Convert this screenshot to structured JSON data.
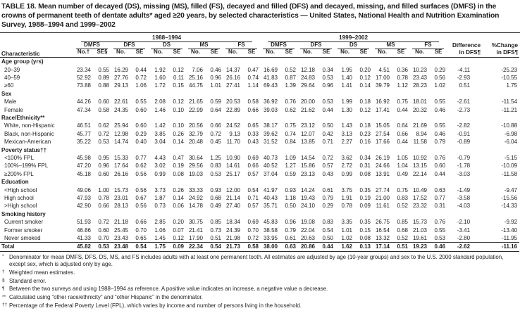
{
  "title": "TABLE 18. Mean number of decayed (DS), missing (MS), filled (FS), decayed and filled (DFS) and decayed, missing, and filled surfaces (DMFS) in the crowns of permanent teeth of dentate adults* aged ≥20 years, by selected characteristics — United States, National Health and Nutrition Examination Survey, 1988–1994 and 1999–2002",
  "header": {
    "characteristic": "Characteristic",
    "period1": "1988–1994",
    "period2": "1999–2002",
    "measures": [
      "DMFS",
      "DFS",
      "DS",
      "MS",
      "FS"
    ],
    "sub_first": [
      "No.†",
      "SE§"
    ],
    "sub": [
      "No.",
      "SE"
    ],
    "difference": "Difference\nin DFS¶",
    "pct_change": "%Change\nin DFS¶"
  },
  "rows": [
    {
      "type": "section",
      "label": "Age group (yrs)"
    },
    {
      "type": "data",
      "label": "20–39",
      "values": [
        "23.34",
        "0.55",
        "16.29",
        "0.44",
        "1.92",
        "0.12",
        "7.06",
        "0.46",
        "14.37",
        "0.47",
        "16.69",
        "0.52",
        "12.18",
        "0.34",
        "1.95",
        "0.20",
        "4.51",
        "0.36",
        "10.23",
        "0.29"
      ],
      "diff": "-4.11",
      "pct": "-25.23"
    },
    {
      "type": "data",
      "label": "40–59",
      "values": [
        "52.92",
        "0.89",
        "27.76",
        "0.72",
        "1.60",
        "0.11",
        "25.16",
        "0.96",
        "26.16",
        "0.74",
        "41.83",
        "0.87",
        "24.83",
        "0.53",
        "1.40",
        "0.12",
        "17.00",
        "0.78",
        "23.43",
        "0.56"
      ],
      "diff": "-2.93",
      "pct": "-10.55"
    },
    {
      "type": "data",
      "label": "≥60",
      "values": [
        "73.88",
        "0.88",
        "29.13",
        "1.06",
        "1.72",
        "0.15",
        "44.75",
        "1.01",
        "27.41",
        "1.14",
        "69.43",
        "1.39",
        "29.64",
        "0.96",
        "1.41",
        "0.14",
        "39.79",
        "1.12",
        "28.23",
        "1.02"
      ],
      "diff": "0.51",
      "pct": "1.75"
    },
    {
      "type": "section",
      "label": "Sex"
    },
    {
      "type": "data",
      "label": "Male",
      "values": [
        "44.26",
        "0.60",
        "22.61",
        "0.55",
        "2.08",
        "0.12",
        "21.65",
        "0.59",
        "20.53",
        "0.58",
        "36.92",
        "0.76",
        "20.00",
        "0.53",
        "1.99",
        "0.18",
        "16.92",
        "0.75",
        "18.01",
        "0.55"
      ],
      "diff": "-2.61",
      "pct": "-11.54"
    },
    {
      "type": "data",
      "label": "Female",
      "values": [
        "47.34",
        "0.58",
        "24.35",
        "0.60",
        "1.46",
        "0.10",
        "22.99",
        "0.64",
        "22.89",
        "0.66",
        "39.03",
        "0.62",
        "21.62",
        "0.44",
        "1.30",
        "0.12",
        "17.41",
        "0.44",
        "20.32",
        "0.46"
      ],
      "diff": "-2.73",
      "pct": "-11.21"
    },
    {
      "type": "section",
      "label": "Race/Ethnicity**"
    },
    {
      "type": "data",
      "label": "White, non-Hispanic",
      "values": [
        "46.51",
        "0.62",
        "25.94",
        "0.60",
        "1.42",
        "0.10",
        "20.56",
        "0.66",
        "24.52",
        "0.65",
        "38.17",
        "0.75",
        "23.12",
        "0.50",
        "1.43",
        "0.18",
        "15.05",
        "0.64",
        "21.69",
        "0.55"
      ],
      "diff": "-2.82",
      "pct": "-10.88"
    },
    {
      "type": "data",
      "label": "Black, non-Hispanic",
      "values": [
        "45.77",
        "0.72",
        "12.98",
        "0.29",
        "3.85",
        "0.26",
        "32.79",
        "0.72",
        "9.13",
        "0.33",
        "39.62",
        "0.74",
        "12.07",
        "0.42",
        "3.13",
        "0.23",
        "27.54",
        "0.66",
        "8.94",
        "0.46"
      ],
      "diff": "-0.91",
      "pct": "-6.98"
    },
    {
      "type": "data",
      "label": "Mexican-American",
      "values": [
        "35.22",
        "0.53",
        "14.74",
        "0.40",
        "3.04",
        "0.14",
        "20.48",
        "0.45",
        "11.70",
        "0.43",
        "31.52",
        "0.84",
        "13.85",
        "0.71",
        "2.27",
        "0.16",
        "17.66",
        "0.44",
        "11.58",
        "0.79"
      ],
      "diff": "-0.89",
      "pct": "-6.04"
    },
    {
      "type": "section",
      "label": "Poverty status††"
    },
    {
      "type": "data",
      "label": "<100% FPL",
      "values": [
        "45.98",
        "0.95",
        "15.33",
        "0.77",
        "4.43",
        "0.47",
        "30.64",
        "1.25",
        "10.90",
        "0.69",
        "40.73",
        "1.09",
        "14.54",
        "0.72",
        "3.62",
        "0.34",
        "26.19",
        "1.05",
        "10.92",
        "0.76"
      ],
      "diff": "-0.79",
      "pct": "-5.15"
    },
    {
      "type": "data",
      "label": "100%–199% FPL",
      "values": [
        "47.20",
        "0.96",
        "17.64",
        "0.62",
        "3.02",
        "0.19",
        "29.56",
        "0.83",
        "14.61",
        "0.66",
        "40.52",
        "1.27",
        "15.86",
        "0.57",
        "2.72",
        "0.31",
        "24.66",
        "1.04",
        "13.15",
        "0.60"
      ],
      "diff": "-1.78",
      "pct": "-10.09"
    },
    {
      "type": "data",
      "label": "≥200% FPL",
      "values": [
        "45.18",
        "0.60",
        "26.16",
        "0.56",
        "0.99",
        "0.08",
        "19.03",
        "0.53",
        "25.17",
        "0.57",
        "37.04",
        "0.59",
        "23.13",
        "0.43",
        "0.99",
        "0.08",
        "13.91",
        "0.49",
        "22.14",
        "0.44"
      ],
      "diff": "-3.03",
      "pct": "-11.58"
    },
    {
      "type": "section",
      "label": "Education"
    },
    {
      "type": "data",
      "label": "<High school",
      "values": [
        "49.06",
        "1.00",
        "15.73",
        "0.56",
        "3.73",
        "0.26",
        "33.33",
        "0.93",
        "12.00",
        "0.54",
        "41.97",
        "0.93",
        "14.24",
        "0.61",
        "3.75",
        "0.35",
        "27.74",
        "0.75",
        "10.49",
        "0.63"
      ],
      "diff": "-1.49",
      "pct": "-9.47"
    },
    {
      "type": "data",
      "label": "High school",
      "values": [
        "47.93",
        "0.78",
        "23.01",
        "0.67",
        "1.87",
        "0.14",
        "24.92",
        "0.68",
        "21.14",
        "0.71",
        "40.43",
        "1.18",
        "19.43",
        "0.79",
        "1.91",
        "0.19",
        "21.00",
        "0.83",
        "17.52",
        "0.77"
      ],
      "diff": "-3.58",
      "pct": "-15.56"
    },
    {
      "type": "data",
      "label": ">High school",
      "values": [
        "42.90",
        "0.66",
        "28.13",
        "0.56",
        "0.73",
        "0.06",
        "14.78",
        "0.49",
        "27.40",
        "0.57",
        "35.71",
        "0.50",
        "24.10",
        "0.29",
        "0.78",
        "0.09",
        "11.61",
        "0.52",
        "23.32",
        "0.31"
      ],
      "diff": "-4.03",
      "pct": "-14.33"
    },
    {
      "type": "section",
      "label": "Smoking history"
    },
    {
      "type": "data",
      "label": "Current smoker",
      "values": [
        "51.93",
        "0.72",
        "21.18",
        "0.66",
        "2.85",
        "0.20",
        "30.75",
        "0.85",
        "18.34",
        "0.69",
        "45.83",
        "0.96",
        "19.08",
        "0.83",
        "3.35",
        "0.35",
        "26.75",
        "0.85",
        "15.73",
        "0.76"
      ],
      "diff": "-2.10",
      "pct": "-9.92"
    },
    {
      "type": "data",
      "label": "Former smoker",
      "values": [
        "46.86",
        "0.60",
        "25.45",
        "0.70",
        "1.06",
        "0.07",
        "21.41",
        "0.73",
        "24.39",
        "0.70",
        "38.58",
        "0.79",
        "22.04",
        "0.54",
        "1.01",
        "0.15",
        "16.54",
        "0.68",
        "21.03",
        "0.55"
      ],
      "diff": "-3.41",
      "pct": "-13.40"
    },
    {
      "type": "data",
      "label": "Never smoked",
      "values": [
        "41.33",
        "0.70",
        "23.43",
        "0.65",
        "1.45",
        "0.12",
        "17.90",
        "0.51",
        "21.98",
        "0.72",
        "33.95",
        "0.61",
        "20.63",
        "0.50",
        "1.02",
        "0.08",
        "13.32",
        "0.52",
        "19.61",
        "0.53"
      ],
      "diff": "-2.80",
      "pct": "-11.95"
    },
    {
      "type": "total",
      "label": "Total",
      "values": [
        "45.82",
        "0.53",
        "23.48",
        "0.54",
        "1.75",
        "0.09",
        "22.34",
        "0.54",
        "21.73",
        "0.58",
        "38.00",
        "0.63",
        "20.86",
        "0.44",
        "1.62",
        "0.13",
        "17.14",
        "0.51",
        "19.23",
        "0.46"
      ],
      "diff": "-2.62",
      "pct": "-11.16"
    }
  ],
  "footnotes": [
    {
      "marker": "*",
      "text": "Denominator for mean DMFS, DFS, DS, MS, and FS includes adults with at least one permanent tooth. All estimates are adjusted by age (10-year groups) and sex to the U.S. 2000 standard population, except sex, which is adjusted only by age."
    },
    {
      "marker": "†",
      "text": "Weighted mean estimates."
    },
    {
      "marker": "§",
      "text": "Standard error."
    },
    {
      "marker": "¶",
      "text": "Between the two surveys and using 1988–1994 as reference. A positive value indicates an increase, a negative value a decrease."
    },
    {
      "marker": "**",
      "text": "Calculated using “other race/ethnicity” and “other Hispanic” in the denominator."
    },
    {
      "marker": "††",
      "text": "Percentage of the Federal Poverty Level (FPL), which varies by income and number of persons living in the household."
    }
  ]
}
